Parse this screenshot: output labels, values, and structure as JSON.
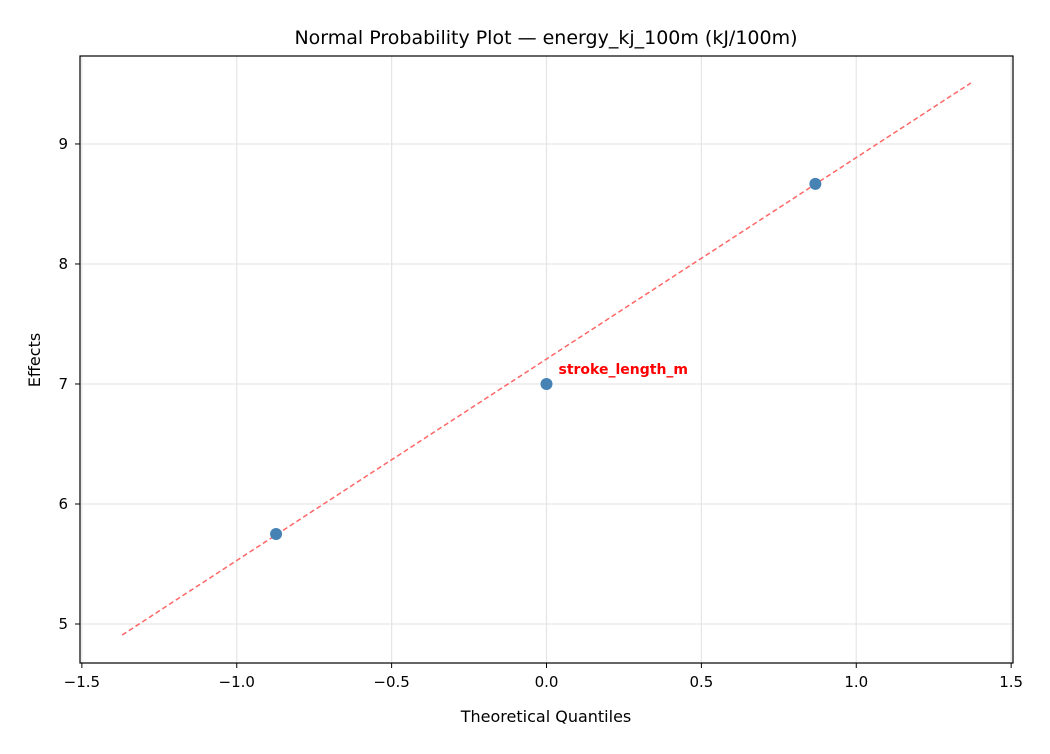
{
  "chart_data": {
    "type": "scatter",
    "title": "Normal Probability Plot — energy_kj_100m (kJ/100m)",
    "xlabel": "Theoretical Quantiles",
    "ylabel": "Effects",
    "xlim": [
      -1.506,
      1.506
    ],
    "ylim": [
      4.675,
      9.733
    ],
    "xticks": [
      -1.5,
      -1.0,
      -0.5,
      0.0,
      0.5,
      1.0,
      1.5
    ],
    "xtick_labels": [
      "−1.5",
      "−1.0",
      "−0.5",
      "0.0",
      "0.5",
      "1.0",
      "1.5"
    ],
    "yticks": [
      5,
      6,
      7,
      8,
      9
    ],
    "ytick_labels": [
      "5",
      "6",
      "7",
      "8",
      "9"
    ],
    "grid": true,
    "points": [
      {
        "x": -0.873,
        "y": 5.75,
        "label": ""
      },
      {
        "x": 0.0,
        "y": 7.0,
        "label": "stroke_length_m"
      },
      {
        "x": 0.868,
        "y": 8.667,
        "label": ""
      }
    ],
    "reference_line": {
      "x": [
        -1.37,
        1.37
      ],
      "y": [
        4.908,
        9.508
      ],
      "style": "dashed"
    },
    "colors": {
      "points": "#4682b4",
      "line": "#ff6666",
      "annotation": "#ff0000",
      "grid": "#e6e6e6"
    }
  }
}
